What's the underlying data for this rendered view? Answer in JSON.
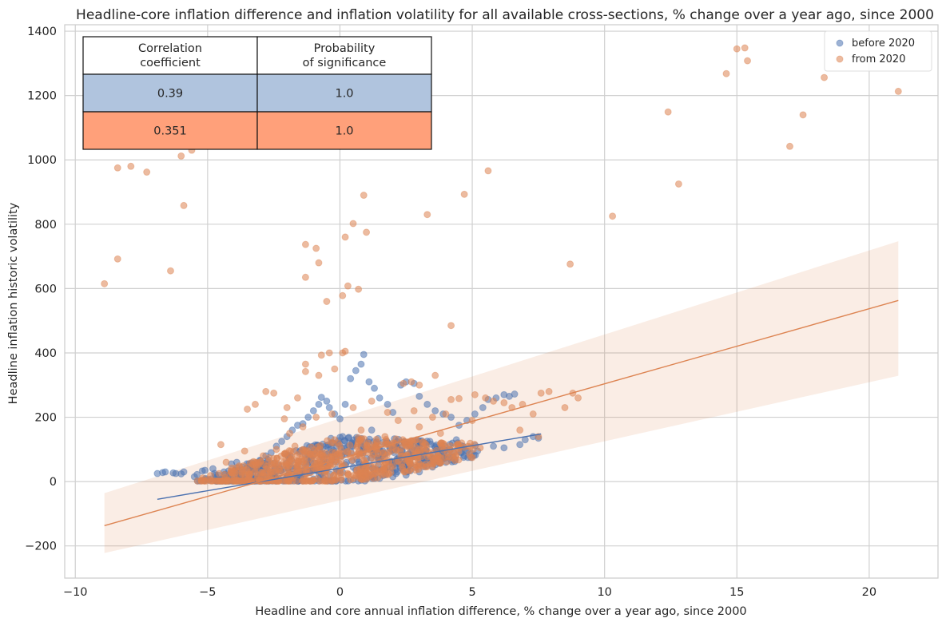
{
  "chart_data": {
    "type": "scatter",
    "title": "Headline-core inflation difference and inflation volatility for all available cross-sections, % change over a year ago, since 2000",
    "xlabel": "Headline and core annual inflation difference, % change over a year ago, since 2000",
    "ylabel": "Headline inflation historic volatility",
    "xlim": [
      -10.4,
      22.6
    ],
    "ylim": [
      -300,
      1420
    ],
    "xticks": [
      -10,
      -5,
      0,
      5,
      10,
      15,
      20
    ],
    "xtick_labels": [
      "−10",
      "−5",
      "0",
      "5",
      "10",
      "15",
      "20"
    ],
    "yticks": [
      -200,
      0,
      200,
      400,
      600,
      800,
      1000,
      1200,
      1400
    ],
    "ytick_labels": [
      "−200",
      "0",
      "200",
      "400",
      "600",
      "800",
      "1000",
      "1200",
      "1400"
    ],
    "grid": true,
    "legend_position": "top-right",
    "table": {
      "headers": [
        "Correlation\ncoefficient",
        "Probability\nof significance"
      ],
      "rows": [
        {
          "values": [
            "0.39",
            "1.0"
          ],
          "color": "#b0c4de"
        },
        {
          "values": [
            "0.351",
            "1.0"
          ],
          "color": "#ffa07a"
        }
      ]
    },
    "series": [
      {
        "name": "before 2020",
        "color": "#4c72b0",
        "regression": {
          "x": [
            -6.9,
            7.6
          ],
          "y": [
            -55,
            148
          ]
        },
        "points": [
          [
            -6.9,
            25
          ],
          [
            -6.7,
            28
          ],
          [
            -6.6,
            30
          ],
          [
            -6.3,
            27
          ],
          [
            -6.2,
            25
          ],
          [
            -6.0,
            24
          ],
          [
            -5.9,
            30
          ],
          [
            -5.5,
            15
          ],
          [
            -5.4,
            22
          ],
          [
            -5.2,
            33
          ],
          [
            -5.1,
            35
          ],
          [
            -4.8,
            40
          ],
          [
            -4.6,
            20
          ],
          [
            -4.3,
            10
          ],
          [
            -4.1,
            55
          ],
          [
            -3.9,
            60
          ],
          [
            -3.7,
            45
          ],
          [
            -3.4,
            50
          ],
          [
            -3.2,
            38
          ],
          [
            -3.0,
            65
          ],
          [
            -2.8,
            80
          ],
          [
            -2.6,
            90
          ],
          [
            -2.4,
            110
          ],
          [
            -2.2,
            125
          ],
          [
            -2.0,
            140
          ],
          [
            -1.8,
            160
          ],
          [
            -1.6,
            175
          ],
          [
            -1.4,
            180
          ],
          [
            -1.2,
            200
          ],
          [
            -1.0,
            220
          ],
          [
            -0.8,
            240
          ],
          [
            -0.7,
            262
          ],
          [
            -0.5,
            250
          ],
          [
            -0.4,
            230
          ],
          [
            -0.2,
            210
          ],
          [
            0,
            195
          ],
          [
            0.2,
            240
          ],
          [
            0.4,
            320
          ],
          [
            0.6,
            345
          ],
          [
            0.8,
            365
          ],
          [
            0.9,
            395
          ],
          [
            1.1,
            310
          ],
          [
            1.3,
            290
          ],
          [
            1.5,
            260
          ],
          [
            1.8,
            240
          ],
          [
            2.0,
            215
          ],
          [
            2.3,
            300
          ],
          [
            2.5,
            310
          ],
          [
            2.8,
            305
          ],
          [
            3.0,
            265
          ],
          [
            3.3,
            240
          ],
          [
            3.6,
            220
          ],
          [
            3.9,
            210
          ],
          [
            4.2,
            200
          ],
          [
            4.5,
            175
          ],
          [
            4.8,
            190
          ],
          [
            5.1,
            210
          ],
          [
            5.4,
            230
          ],
          [
            5.6,
            255
          ],
          [
            5.9,
            260
          ],
          [
            6.2,
            270
          ],
          [
            6.4,
            265
          ],
          [
            6.6,
            272
          ],
          [
            7.0,
            130
          ],
          [
            7.3,
            140
          ],
          [
            7.5,
            135
          ],
          [
            6.8,
            115
          ],
          [
            6.2,
            105
          ],
          [
            5.8,
            110
          ],
          [
            5.2,
            95
          ],
          [
            4.7,
            80
          ],
          [
            4.0,
            60
          ],
          [
            3.5,
            45
          ],
          [
            3.0,
            30
          ],
          [
            2.5,
            20
          ],
          [
            2.0,
            15
          ],
          [
            1.5,
            10
          ],
          [
            1.0,
            8
          ],
          [
            0.5,
            5
          ],
          [
            -0.5,
            5
          ],
          [
            -1.0,
            8
          ],
          [
            -1.5,
            12
          ],
          [
            -2.0,
            15
          ],
          [
            -2.5,
            20
          ],
          [
            -3.0,
            12
          ],
          [
            -1.2,
            60
          ],
          [
            -0.6,
            70
          ],
          [
            0.3,
            90
          ],
          [
            0.8,
            110
          ],
          [
            1.6,
            80
          ],
          [
            2.2,
            70
          ],
          [
            2.7,
            95
          ],
          [
            3.2,
            120
          ],
          [
            3.8,
            100
          ],
          [
            4.4,
            130
          ],
          [
            -1.8,
            40
          ],
          [
            -2.6,
            30
          ],
          [
            0.1,
            140
          ],
          [
            1.2,
            160
          ],
          [
            -0.3,
            120
          ]
        ]
      },
      {
        "name": "from 2020",
        "color": "#dd8452",
        "regression": {
          "x": [
            -8.9,
            21.1
          ],
          "y": [
            -137,
            563
          ]
        },
        "band": {
          "x": [
            -8.9,
            21.1
          ],
          "lower": [
            -222,
            329
          ],
          "upper": [
            -36,
            747
          ]
        },
        "points": [
          [
            -8.9,
            615
          ],
          [
            -8.4,
            692
          ],
          [
            -8.4,
            975
          ],
          [
            -7.9,
            980
          ],
          [
            -7.3,
            962
          ],
          [
            -6.4,
            655
          ],
          [
            -6.0,
            1012
          ],
          [
            -5.9,
            858
          ],
          [
            -5.8,
            1050
          ],
          [
            -5.6,
            1030
          ],
          [
            -1.3,
            635
          ],
          [
            -1.3,
            737
          ],
          [
            -0.9,
            725
          ],
          [
            -0.8,
            680
          ],
          [
            -0.5,
            560
          ],
          [
            0.1,
            578
          ],
          [
            0.2,
            760
          ],
          [
            0.3,
            608
          ],
          [
            0.5,
            802
          ],
          [
            0.7,
            598
          ],
          [
            0.9,
            890
          ],
          [
            1.0,
            775
          ],
          [
            3.3,
            830
          ],
          [
            4.2,
            485
          ],
          [
            4.7,
            893
          ],
          [
            5.6,
            966
          ],
          [
            8.7,
            676
          ],
          [
            10.3,
            825
          ],
          [
            12.4,
            1149
          ],
          [
            12.8,
            925
          ],
          [
            14.6,
            1268
          ],
          [
            15.0,
            1345
          ],
          [
            15.3,
            1348
          ],
          [
            15.4,
            1308
          ],
          [
            17.0,
            1042
          ],
          [
            17.5,
            1140
          ],
          [
            18.3,
            1256
          ],
          [
            21.1,
            1213
          ],
          [
            0.1,
            400
          ],
          [
            0.2,
            405
          ],
          [
            -0.4,
            400
          ],
          [
            -0.2,
            350
          ],
          [
            -1.3,
            365
          ],
          [
            -1.3,
            342
          ],
          [
            -0.7,
            393
          ],
          [
            -0.8,
            330
          ],
          [
            2.4,
            305
          ],
          [
            2.7,
            310
          ],
          [
            3.0,
            300
          ],
          [
            3.6,
            330
          ],
          [
            4.2,
            255
          ],
          [
            4.5,
            258
          ],
          [
            5.1,
            270
          ],
          [
            5.5,
            260
          ],
          [
            5.8,
            250
          ],
          [
            6.2,
            245
          ],
          [
            6.5,
            230
          ],
          [
            6.9,
            240
          ],
          [
            7.3,
            210
          ],
          [
            7.6,
            275
          ],
          [
            7.9,
            280
          ],
          [
            8.5,
            230
          ],
          [
            8.8,
            275
          ],
          [
            9.0,
            260
          ],
          [
            7.5,
            140
          ],
          [
            6.8,
            160
          ],
          [
            5.0,
            190
          ],
          [
            4.0,
            210
          ],
          [
            3.5,
            200
          ],
          [
            2.8,
            220
          ],
          [
            -2.8,
            280
          ],
          [
            -2.5,
            275
          ],
          [
            -2.0,
            230
          ],
          [
            -1.6,
            260
          ],
          [
            -3.2,
            240
          ],
          [
            -3.5,
            225
          ],
          [
            -2.1,
            195
          ],
          [
            -4.5,
            115
          ],
          [
            -4.3,
            60
          ],
          [
            -4.1,
            35
          ],
          [
            -3.8,
            45
          ],
          [
            -3.2,
            50
          ],
          [
            -2.9,
            80
          ],
          [
            -2.4,
            100
          ],
          [
            -1.9,
            150
          ],
          [
            -1.4,
            170
          ],
          [
            -0.9,
            200
          ],
          [
            -0.3,
            210
          ],
          [
            0.5,
            230
          ],
          [
            1.2,
            250
          ],
          [
            1.8,
            215
          ],
          [
            2.2,
            190
          ],
          [
            3.0,
            170
          ],
          [
            -1.0,
            60
          ],
          [
            0.0,
            80
          ],
          [
            1.0,
            100
          ],
          [
            2.0,
            120
          ],
          [
            -0.5,
            40
          ],
          [
            1.5,
            60
          ],
          [
            2.5,
            80
          ],
          [
            -2.2,
            50
          ],
          [
            3.8,
            150
          ],
          [
            4.6,
            120
          ],
          [
            5.3,
            105
          ],
          [
            -3.6,
            95
          ],
          [
            0.8,
            160
          ],
          [
            -0.2,
            130
          ],
          [
            1.7,
            140
          ],
          [
            -1.7,
            110
          ],
          [
            2.9,
            130
          ]
        ]
      }
    ]
  }
}
